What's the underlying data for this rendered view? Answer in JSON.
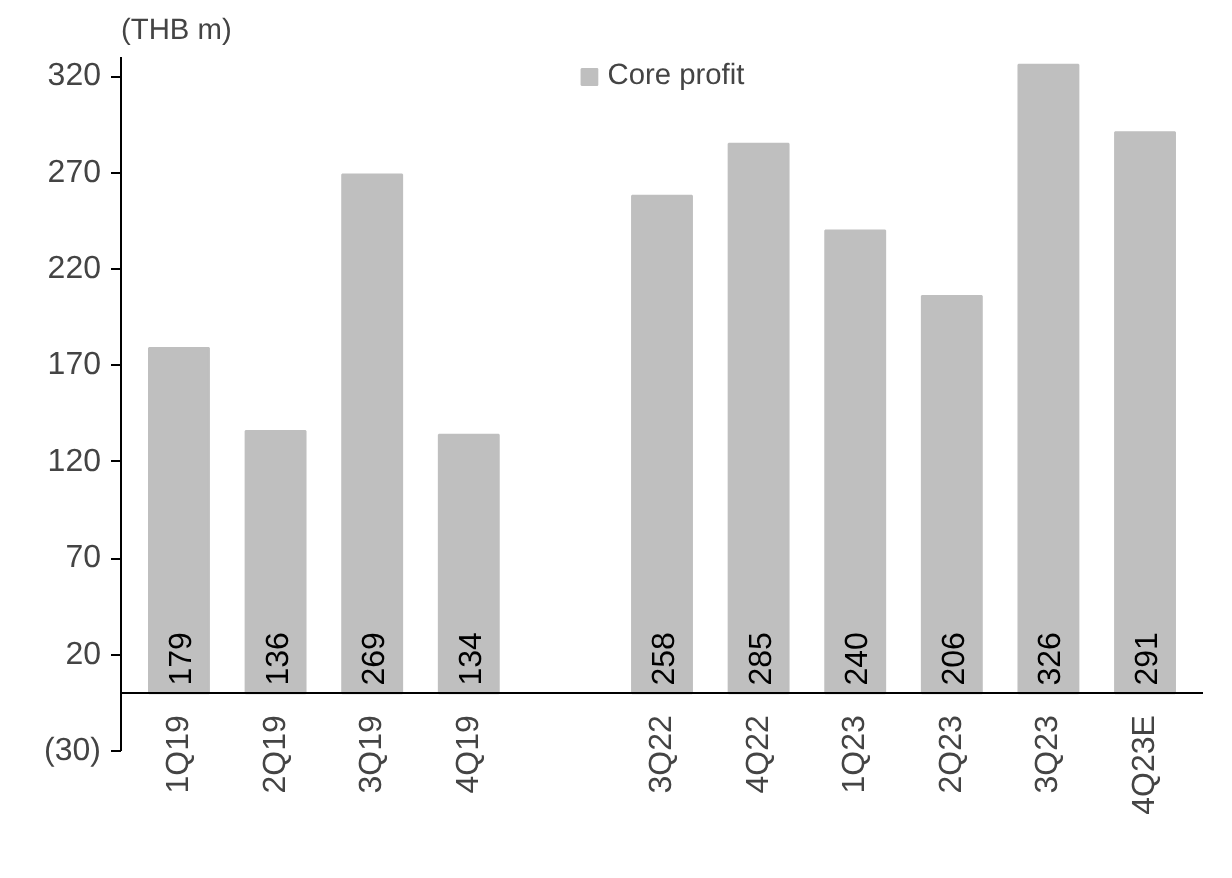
{
  "chart_data": {
    "type": "bar",
    "ylabel": "(THB m)",
    "categories": [
      "1Q19",
      "2Q19",
      "3Q19",
      "4Q19",
      null,
      "3Q22",
      "4Q22",
      "1Q23",
      "2Q23",
      "3Q23",
      "4Q23E"
    ],
    "series": [
      {
        "name": "Core profit",
        "color": "#bfbfbf",
        "values": [
          179,
          136,
          269,
          134,
          null,
          258,
          285,
          240,
          206,
          326,
          291
        ]
      }
    ],
    "ylim": [
      -30,
      330
    ],
    "yticks": [
      {
        "value": -30,
        "label": "(30)"
      },
      20,
      70,
      120,
      170,
      220,
      270,
      320
    ],
    "data_labels": true,
    "grid": false,
    "legend": "top"
  }
}
